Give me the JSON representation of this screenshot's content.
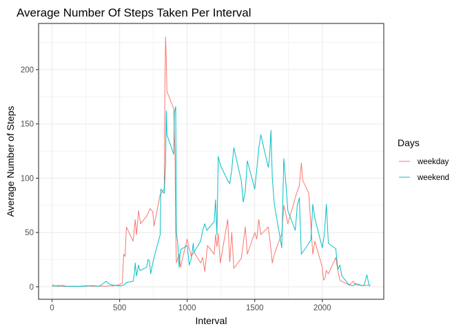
{
  "chart_data": {
    "type": "line",
    "title": "Average Number Of Steps Taken Per Interval",
    "xlabel": "Interval",
    "ylabel": "Average Number of Steps",
    "xlim": [
      -100,
      2455
    ],
    "ylim": [
      -11.5,
      242.5
    ],
    "x_ticks": [
      0,
      500,
      1000,
      1500,
      2000
    ],
    "y_ticks": [
      0,
      50,
      100,
      150,
      200
    ],
    "x_tick_labels": [
      "0",
      "500",
      "1000",
      "1500",
      "2000"
    ],
    "y_tick_labels": [
      "0",
      "50",
      "100",
      "150",
      "200"
    ],
    "grid": true,
    "legend": {
      "title": "Days",
      "position": "right"
    },
    "series": [
      {
        "name": "weekday",
        "color": "#F8766D",
        "points": [
          [
            0,
            2
          ],
          [
            25,
            0.5
          ],
          [
            50,
            1.5
          ],
          [
            75,
            0.2
          ],
          [
            100,
            0.4
          ],
          [
            150,
            0.5
          ],
          [
            200,
            0.3
          ],
          [
            250,
            1
          ],
          [
            300,
            0.5
          ],
          [
            350,
            0.7
          ],
          [
            400,
            0.4
          ],
          [
            430,
            1
          ],
          [
            450,
            0.8
          ],
          [
            500,
            2
          ],
          [
            520,
            3.5
          ],
          [
            530,
            30
          ],
          [
            540,
            28
          ],
          [
            550,
            55
          ],
          [
            600,
            42
          ],
          [
            615,
            62
          ],
          [
            625,
            48
          ],
          [
            640,
            70
          ],
          [
            655,
            58
          ],
          [
            700,
            65
          ],
          [
            725,
            72
          ],
          [
            745,
            69
          ],
          [
            755,
            56
          ],
          [
            800,
            85
          ],
          [
            830,
            90
          ],
          [
            835,
            182
          ],
          [
            840,
            230
          ],
          [
            845,
            210
          ],
          [
            850,
            180
          ],
          [
            900,
            164
          ],
          [
            910,
            120
          ],
          [
            915,
            52
          ],
          [
            920,
            22
          ],
          [
            940,
            30
          ],
          [
            950,
            18
          ],
          [
            1000,
            44
          ],
          [
            1015,
            35
          ],
          [
            1030,
            28
          ],
          [
            1050,
            32
          ],
          [
            1100,
            22
          ],
          [
            1115,
            27
          ],
          [
            1130,
            14
          ],
          [
            1150,
            38
          ],
          [
            1200,
            30
          ],
          [
            1210,
            48
          ],
          [
            1220,
            37
          ],
          [
            1230,
            49
          ],
          [
            1245,
            22
          ],
          [
            1300,
            62
          ],
          [
            1315,
            23
          ],
          [
            1330,
            50
          ],
          [
            1345,
            17
          ],
          [
            1400,
            26
          ],
          [
            1415,
            40
          ],
          [
            1430,
            55
          ],
          [
            1445,
            30
          ],
          [
            1500,
            50
          ],
          [
            1515,
            44
          ],
          [
            1530,
            62
          ],
          [
            1545,
            48
          ],
          [
            1600,
            55
          ],
          [
            1615,
            40
          ],
          [
            1630,
            22
          ],
          [
            1645,
            30
          ],
          [
            1700,
            49
          ],
          [
            1715,
            75
          ],
          [
            1730,
            67
          ],
          [
            1745,
            58
          ],
          [
            1800,
            82
          ],
          [
            1815,
            88
          ],
          [
            1830,
            93
          ],
          [
            1845,
            114
          ],
          [
            1855,
            98
          ],
          [
            1900,
            86
          ],
          [
            1915,
            57
          ],
          [
            1930,
            30
          ],
          [
            1945,
            42
          ],
          [
            2000,
            18
          ],
          [
            2010,
            6
          ],
          [
            2020,
            8
          ],
          [
            2030,
            15
          ],
          [
            2045,
            12
          ],
          [
            2100,
            27
          ],
          [
            2115,
            15
          ],
          [
            2130,
            6
          ],
          [
            2145,
            5
          ],
          [
            2200,
            1.5
          ],
          [
            2230,
            5
          ],
          [
            2245,
            2
          ],
          [
            2300,
            1
          ],
          [
            2330,
            1.5
          ],
          [
            2355,
            1
          ]
        ]
      },
      {
        "name": "weekend",
        "color": "#00BFC4",
        "points": [
          [
            0,
            0.5
          ],
          [
            25,
            1
          ],
          [
            50,
            0.3
          ],
          [
            75,
            1.5
          ],
          [
            100,
            0.5
          ],
          [
            150,
            0.4
          ],
          [
            200,
            0.3
          ],
          [
            250,
            0.6
          ],
          [
            300,
            1
          ],
          [
            350,
            0.4
          ],
          [
            400,
            5
          ],
          [
            420,
            3
          ],
          [
            450,
            1.5
          ],
          [
            500,
            0.8
          ],
          [
            530,
            1.5
          ],
          [
            550,
            4
          ],
          [
            600,
            5
          ],
          [
            610,
            13
          ],
          [
            615,
            22
          ],
          [
            625,
            10
          ],
          [
            640,
            20
          ],
          [
            650,
            15
          ],
          [
            700,
            18
          ],
          [
            710,
            25
          ],
          [
            720,
            24
          ],
          [
            730,
            12
          ],
          [
            740,
            19
          ],
          [
            755,
            27
          ],
          [
            800,
            48
          ],
          [
            805,
            90
          ],
          [
            830,
            86
          ],
          [
            840,
            112
          ],
          [
            845,
            162
          ],
          [
            850,
            140
          ],
          [
            900,
            122
          ],
          [
            905,
            160
          ],
          [
            915,
            166
          ],
          [
            920,
            50
          ],
          [
            930,
            40
          ],
          [
            940,
            18
          ],
          [
            950,
            34
          ],
          [
            1000,
            38
          ],
          [
            1015,
            20
          ],
          [
            1030,
            26
          ],
          [
            1045,
            40
          ],
          [
            1050,
            32
          ],
          [
            1100,
            42
          ],
          [
            1115,
            52
          ],
          [
            1130,
            58
          ],
          [
            1145,
            52
          ],
          [
            1200,
            60
          ],
          [
            1210,
            80
          ],
          [
            1220,
            48
          ],
          [
            1230,
            120
          ],
          [
            1245,
            112
          ],
          [
            1300,
            98
          ],
          [
            1315,
            95
          ],
          [
            1330,
            108
          ],
          [
            1345,
            128
          ],
          [
            1400,
            98
          ],
          [
            1415,
            78
          ],
          [
            1430,
            88
          ],
          [
            1445,
            116
          ],
          [
            1500,
            90
          ],
          [
            1515,
            108
          ],
          [
            1530,
            128
          ],
          [
            1545,
            140
          ],
          [
            1600,
            110
          ],
          [
            1610,
            120
          ],
          [
            1620,
            144
          ],
          [
            1630,
            100
          ],
          [
            1645,
            76
          ],
          [
            1700,
            36
          ],
          [
            1715,
            118
          ],
          [
            1730,
            96
          ],
          [
            1745,
            70
          ],
          [
            1800,
            52
          ],
          [
            1815,
            75
          ],
          [
            1830,
            82
          ],
          [
            1845,
            30
          ],
          [
            1900,
            40
          ],
          [
            1915,
            43
          ],
          [
            1930,
            76
          ],
          [
            1945,
            63
          ],
          [
            2000,
            36
          ],
          [
            2015,
            48
          ],
          [
            2030,
            76
          ],
          [
            2045,
            40
          ],
          [
            2100,
            35
          ],
          [
            2115,
            16
          ],
          [
            2130,
            20
          ],
          [
            2145,
            10
          ],
          [
            2200,
            1.5
          ],
          [
            2230,
            1
          ],
          [
            2245,
            3
          ],
          [
            2300,
            1
          ],
          [
            2310,
            1.5
          ],
          [
            2330,
            11
          ],
          [
            2345,
            2
          ],
          [
            2355,
            0.5
          ]
        ]
      }
    ]
  }
}
